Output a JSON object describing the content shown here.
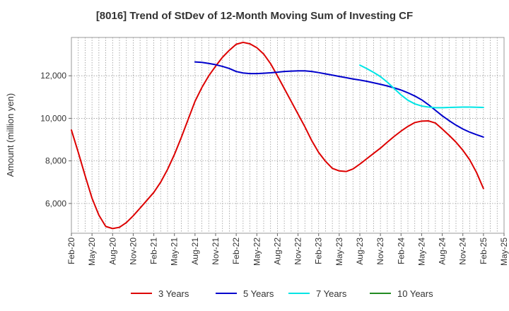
{
  "chart_data": {
    "type": "line",
    "title": "[8016]  Trend of StDev of 12-Month Moving Sum of Investing CF",
    "ylabel": "Amount (million yen)",
    "xlabel": "",
    "ylim": [
      4600,
      13800
    ],
    "yticks": [
      6000,
      8000,
      10000,
      12000
    ],
    "ytick_labels": [
      "6,000",
      "8,000",
      "10,000",
      "12,000"
    ],
    "xlim": [
      "2020-02",
      "2025-05"
    ],
    "x_tick_labels": [
      "Feb-20",
      "May-20",
      "Aug-20",
      "Nov-20",
      "Feb-21",
      "May-21",
      "Aug-21",
      "Nov-21",
      "Feb-22",
      "May-22",
      "Aug-22",
      "Nov-22",
      "Feb-23",
      "May-23",
      "Aug-23",
      "Nov-23",
      "Feb-24",
      "May-24",
      "Aug-24",
      "Nov-24",
      "Feb-25",
      "May-25"
    ],
    "grid": true,
    "legend_position": "bottom",
    "series": [
      {
        "name": "3 Years",
        "color": "#dd0000",
        "points": [
          [
            "2020-02",
            9450
          ],
          [
            "2020-03",
            8400
          ],
          [
            "2020-04",
            7300
          ],
          [
            "2020-05",
            6250
          ],
          [
            "2020-06",
            5450
          ],
          [
            "2020-07",
            4920
          ],
          [
            "2020-08",
            4820
          ],
          [
            "2020-09",
            4880
          ],
          [
            "2020-10",
            5100
          ],
          [
            "2020-11",
            5420
          ],
          [
            "2020-12",
            5780
          ],
          [
            "2021-01",
            6150
          ],
          [
            "2021-02",
            6520
          ],
          [
            "2021-03",
            7000
          ],
          [
            "2021-04",
            7600
          ],
          [
            "2021-05",
            8300
          ],
          [
            "2021-06",
            9100
          ],
          [
            "2021-07",
            9950
          ],
          [
            "2021-08",
            10800
          ],
          [
            "2021-09",
            11450
          ],
          [
            "2021-10",
            12000
          ],
          [
            "2021-11",
            12450
          ],
          [
            "2021-12",
            12870
          ],
          [
            "2022-01",
            13200
          ],
          [
            "2022-02",
            13480
          ],
          [
            "2022-03",
            13570
          ],
          [
            "2022-04",
            13500
          ],
          [
            "2022-05",
            13320
          ],
          [
            "2022-06",
            13020
          ],
          [
            "2022-07",
            12570
          ],
          [
            "2022-08",
            12000
          ],
          [
            "2022-09",
            11400
          ],
          [
            "2022-10",
            10800
          ],
          [
            "2022-11",
            10200
          ],
          [
            "2022-12",
            9600
          ],
          [
            "2023-01",
            8950
          ],
          [
            "2023-02",
            8400
          ],
          [
            "2023-03",
            7980
          ],
          [
            "2023-04",
            7650
          ],
          [
            "2023-05",
            7530
          ],
          [
            "2023-06",
            7500
          ],
          [
            "2023-07",
            7620
          ],
          [
            "2023-08",
            7850
          ],
          [
            "2023-09",
            8100
          ],
          [
            "2023-10",
            8350
          ],
          [
            "2023-11",
            8600
          ],
          [
            "2023-12",
            8880
          ],
          [
            "2024-01",
            9150
          ],
          [
            "2024-02",
            9400
          ],
          [
            "2024-03",
            9620
          ],
          [
            "2024-04",
            9800
          ],
          [
            "2024-05",
            9870
          ],
          [
            "2024-06",
            9880
          ],
          [
            "2024-07",
            9780
          ],
          [
            "2024-08",
            9500
          ],
          [
            "2024-09",
            9200
          ],
          [
            "2024-10",
            8880
          ],
          [
            "2024-11",
            8500
          ],
          [
            "2024-12",
            8050
          ],
          [
            "2025-01",
            7450
          ],
          [
            "2025-02",
            6700
          ]
        ]
      },
      {
        "name": "5 Years",
        "color": "#0000cc",
        "points": [
          [
            "2021-08",
            12650
          ],
          [
            "2021-09",
            12630
          ],
          [
            "2021-10",
            12580
          ],
          [
            "2021-11",
            12520
          ],
          [
            "2021-12",
            12440
          ],
          [
            "2022-01",
            12340
          ],
          [
            "2022-02",
            12200
          ],
          [
            "2022-03",
            12130
          ],
          [
            "2022-04",
            12100
          ],
          [
            "2022-05",
            12100
          ],
          [
            "2022-06",
            12120
          ],
          [
            "2022-07",
            12140
          ],
          [
            "2022-08",
            12170
          ],
          [
            "2022-09",
            12200
          ],
          [
            "2022-10",
            12220
          ],
          [
            "2022-11",
            12230
          ],
          [
            "2022-12",
            12230
          ],
          [
            "2023-01",
            12200
          ],
          [
            "2023-02",
            12150
          ],
          [
            "2023-03",
            12090
          ],
          [
            "2023-04",
            12030
          ],
          [
            "2023-05",
            11970
          ],
          [
            "2023-06",
            11910
          ],
          [
            "2023-07",
            11850
          ],
          [
            "2023-08",
            11800
          ],
          [
            "2023-09",
            11740
          ],
          [
            "2023-10",
            11670
          ],
          [
            "2023-11",
            11600
          ],
          [
            "2023-12",
            11520
          ],
          [
            "2024-01",
            11430
          ],
          [
            "2024-02",
            11330
          ],
          [
            "2024-03",
            11200
          ],
          [
            "2024-04",
            11050
          ],
          [
            "2024-05",
            10870
          ],
          [
            "2024-06",
            10640
          ],
          [
            "2024-07",
            10380
          ],
          [
            "2024-08",
            10120
          ],
          [
            "2024-09",
            9890
          ],
          [
            "2024-10",
            9680
          ],
          [
            "2024-11",
            9500
          ],
          [
            "2024-12",
            9350
          ],
          [
            "2025-01",
            9230
          ],
          [
            "2025-02",
            9120
          ]
        ]
      },
      {
        "name": "7 Years",
        "color": "#00e5e5",
        "points": [
          [
            "2023-08",
            12500
          ],
          [
            "2023-09",
            12340
          ],
          [
            "2023-10",
            12160
          ],
          [
            "2023-11",
            11960
          ],
          [
            "2023-12",
            11700
          ],
          [
            "2024-01",
            11400
          ],
          [
            "2024-02",
            11100
          ],
          [
            "2024-03",
            10850
          ],
          [
            "2024-04",
            10680
          ],
          [
            "2024-05",
            10580
          ],
          [
            "2024-06",
            10530
          ],
          [
            "2024-07",
            10500
          ],
          [
            "2024-08",
            10500
          ],
          [
            "2024-09",
            10510
          ],
          [
            "2024-10",
            10520
          ],
          [
            "2024-11",
            10530
          ],
          [
            "2024-12",
            10530
          ],
          [
            "2025-01",
            10520
          ],
          [
            "2025-02",
            10510
          ]
        ]
      },
      {
        "name": "10 Years",
        "color": "#228b22",
        "points": []
      }
    ]
  }
}
